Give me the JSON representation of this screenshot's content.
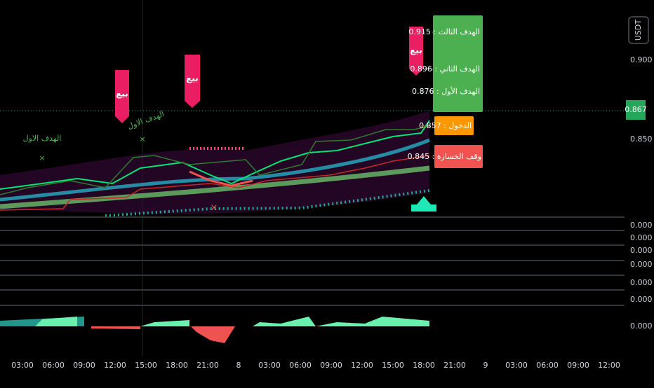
{
  "price_axis": {
    "currency": "USDT",
    "labels": [
      "0.900",
      "0.850"
    ],
    "current": "0.867"
  },
  "targets": [
    "الهدف الثالث : 0.915",
    "الهدف الثاني : 0.896",
    "الهدف الأول : 0.876"
  ],
  "entry": "الدخول : 0.857",
  "stop_loss": "وقف الخسارة : 0.845",
  "signals": [
    "بيع",
    "بيع",
    "بيع"
  ],
  "annotations": [
    "الهدف الاول",
    "الهدف الاول"
  ],
  "pane_labels": [
    "0.000",
    "0.000",
    "0.000",
    "0.000",
    "0.000",
    "0.000",
    "0.000"
  ],
  "time_axis": [
    "03:00",
    "06:00",
    "09:00",
    "12:00",
    "15:00",
    "18:00",
    "21:00",
    "8",
    "03:00",
    "06:00",
    "09:00",
    "12:00",
    "15:00",
    "18:00",
    "21:00",
    "9",
    "03:00",
    "06:00",
    "09:00",
    "12:00"
  ]
}
